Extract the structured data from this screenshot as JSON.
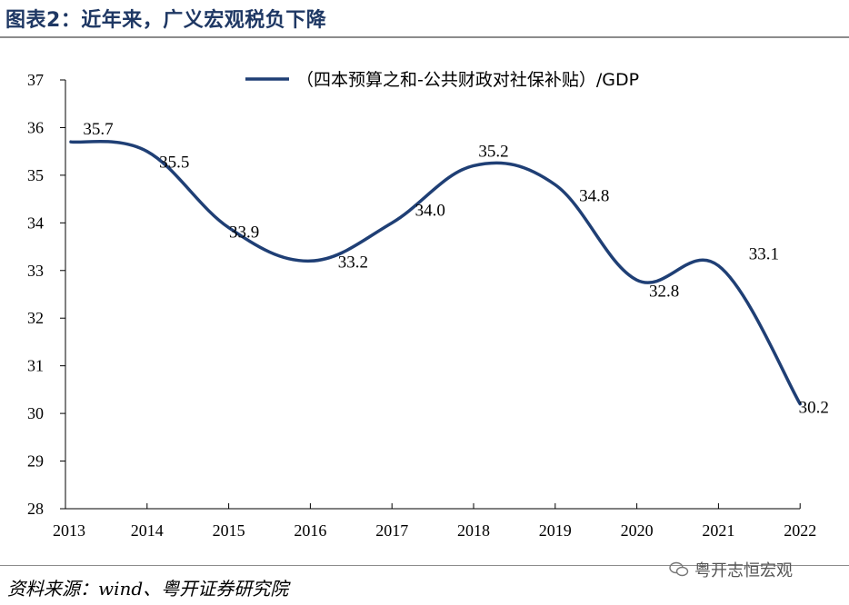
{
  "header": {
    "title": "图表2：近年来，广义宏观税负下降"
  },
  "footer": {
    "source": "资料来源：wind、粤开证券研究院",
    "watermark": "粤开志恒宏观"
  },
  "colors": {
    "line": "#1f3f75",
    "title": "#1f3864"
  },
  "chart_data": {
    "type": "line",
    "title": "",
    "xlabel": "",
    "ylabel": "",
    "categories": [
      "2013",
      "2014",
      "2015",
      "2016",
      "2017",
      "2018",
      "2019",
      "2020",
      "2021",
      "2022"
    ],
    "series": [
      {
        "name": "（四本预算之和-公共财政对社保补贴）/GDP",
        "values": [
          35.7,
          35.5,
          33.9,
          33.2,
          34.0,
          35.2,
          34.8,
          32.8,
          33.1,
          30.2
        ]
      }
    ],
    "data_labels": [
      "35.7",
      "35.5",
      "33.9",
      "33.2",
      "34.0",
      "35.2",
      "34.8",
      "32.8",
      "33.1",
      "30.2"
    ],
    "y_ticks": [
      "28",
      "29",
      "30",
      "31",
      "32",
      "33",
      "34",
      "35",
      "36",
      "37"
    ],
    "ylim": [
      28,
      37
    ],
    "grid": false,
    "legend_position": "top"
  }
}
